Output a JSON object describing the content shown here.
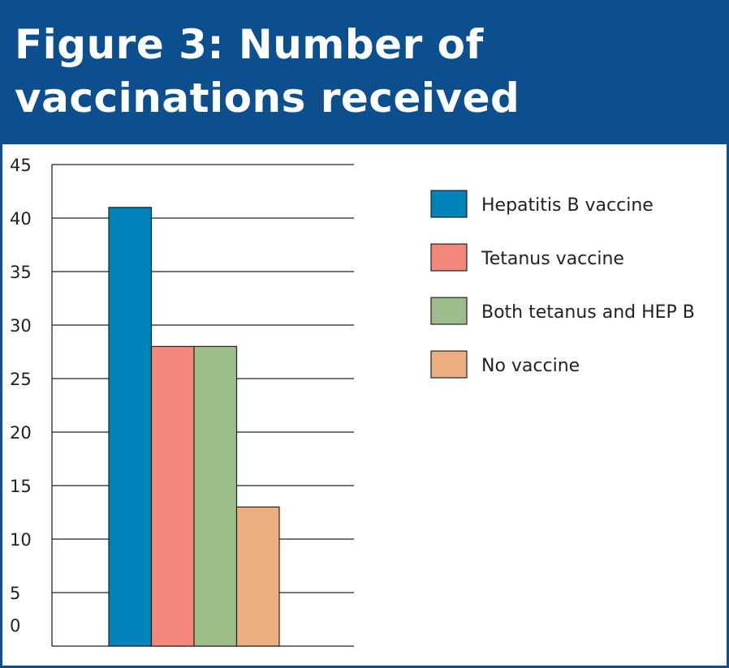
{
  "title": "Figure 3: Number of vaccinations received",
  "colors": {
    "header": "#0b4f8e"
  },
  "chart_data": {
    "type": "bar",
    "title": "Figure 3: Number of vaccinations received",
    "xlabel": "",
    "ylabel": "",
    "ylim": [
      0,
      45
    ],
    "yticks": [
      0,
      5,
      10,
      15,
      20,
      25,
      30,
      35,
      40,
      45
    ],
    "grid": true,
    "legend_position": "right",
    "categories": [
      "Hepatitis B vaccine",
      "Tetanus vaccine",
      "Both tetanus and HEP B",
      "No vaccine"
    ],
    "values": [
      41,
      28,
      28,
      13
    ],
    "colors": [
      "#0083b8",
      "#f3877b",
      "#9dbd8a",
      "#ecae7e"
    ]
  }
}
